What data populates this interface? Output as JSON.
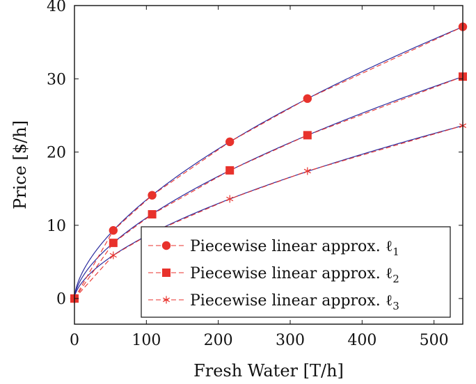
{
  "chart_data": {
    "type": "line",
    "xlabel": "Fresh Water [T/h]",
    "ylabel": "Price [$/h]",
    "xlim": [
      0,
      540
    ],
    "ylim": [
      -3.5,
      40
    ],
    "xticks": [
      0,
      100,
      200,
      300,
      400,
      500
    ],
    "yticks": [
      0,
      10,
      20,
      30,
      40
    ],
    "grid": false,
    "legend_position": "bottom-right",
    "colors": {
      "approx": "#e8322c",
      "curve": "#2b2b9e",
      "axis": "#111111"
    },
    "series": [
      {
        "name": "Piecewise linear approx. ℓ1",
        "legend_text": "Piecewise linear approx. ℓ",
        "legend_sub": "1",
        "marker": "circle",
        "x": [
          0,
          54,
          108,
          216,
          324,
          540
        ],
        "y": [
          0,
          9.3,
          14.1,
          21.4,
          27.3,
          37.1
        ]
      },
      {
        "name": "Piecewise linear approx. ℓ2",
        "legend_text": "Piecewise linear approx. ℓ",
        "legend_sub": "2",
        "marker": "square",
        "x": [
          0,
          54,
          108,
          216,
          324,
          540
        ],
        "y": [
          0,
          7.6,
          11.5,
          17.5,
          22.3,
          30.3
        ]
      },
      {
        "name": "Piecewise linear approx. ℓ3",
        "legend_text": "Piecewise linear approx. ℓ",
        "legend_sub": "3",
        "marker": "star",
        "x": [
          0,
          54,
          108,
          216,
          324,
          540
        ],
        "y": [
          0,
          5.9,
          9.0,
          13.6,
          17.4,
          23.6
        ]
      }
    ]
  }
}
